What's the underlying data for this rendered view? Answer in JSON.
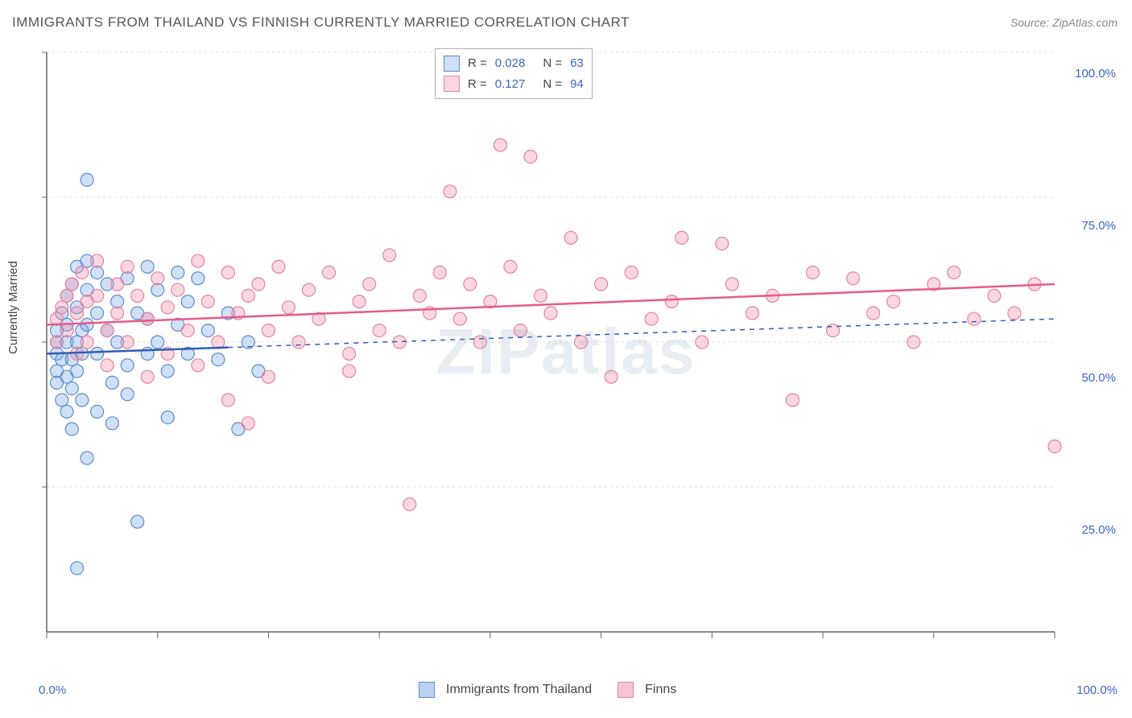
{
  "title": "IMMIGRANTS FROM THAILAND VS FINNISH CURRENTLY MARRIED CORRELATION CHART",
  "source": "Source: ZipAtlas.com",
  "watermark": "ZIPatlas",
  "y_axis_label": "Currently Married",
  "chart": {
    "type": "scatter",
    "xlim": [
      0,
      100
    ],
    "ylim": [
      0,
      100
    ],
    "y_ticks": [
      25,
      50,
      75,
      100
    ],
    "y_tick_labels": [
      "25.0%",
      "50.0%",
      "75.0%",
      "100.0%"
    ],
    "x_major_ticks": [
      0,
      100
    ],
    "x_tick_labels": [
      "0.0%",
      "100.0%"
    ],
    "x_minor_ticks": [
      11,
      22,
      33,
      44,
      55,
      66,
      77,
      88
    ],
    "background_color": "#ffffff",
    "grid_color": "#dddddd",
    "axis_color": "#666666",
    "marker_radius": 8,
    "marker_stroke_width": 1.2,
    "series": [
      {
        "name": "Immigrants from Thailand",
        "fill": "rgba(120,165,225,0.35)",
        "stroke": "#5a8bd0",
        "trend_stroke": "#2f5db8",
        "trend": {
          "x1": 0,
          "y1": 48,
          "x2": 100,
          "y2": 54,
          "solid_until_x": 18
        },
        "R": "0.028",
        "N": "63",
        "points": [
          [
            1,
            48
          ],
          [
            1,
            50
          ],
          [
            1,
            45
          ],
          [
            1,
            52
          ],
          [
            1,
            43
          ],
          [
            1.5,
            55
          ],
          [
            1.5,
            47
          ],
          [
            1.5,
            40
          ],
          [
            2,
            58
          ],
          [
            2,
            50
          ],
          [
            2,
            44
          ],
          [
            2,
            38
          ],
          [
            2,
            53
          ],
          [
            2.5,
            60
          ],
          [
            2.5,
            47
          ],
          [
            2.5,
            42
          ],
          [
            2.5,
            35
          ],
          [
            3,
            63
          ],
          [
            3,
            56
          ],
          [
            3,
            50
          ],
          [
            3,
            45
          ],
          [
            3,
            11
          ],
          [
            3.5,
            52
          ],
          [
            3.5,
            48
          ],
          [
            3.5,
            40
          ],
          [
            4,
            64
          ],
          [
            4,
            59
          ],
          [
            4,
            53
          ],
          [
            4,
            30
          ],
          [
            4,
            78
          ],
          [
            5,
            62
          ],
          [
            5,
            55
          ],
          [
            5,
            48
          ],
          [
            5,
            38
          ],
          [
            6,
            60
          ],
          [
            6,
            52
          ],
          [
            6.5,
            43
          ],
          [
            6.5,
            36
          ],
          [
            7,
            57
          ],
          [
            7,
            50
          ],
          [
            8,
            61
          ],
          [
            8,
            46
          ],
          [
            8,
            41
          ],
          [
            9,
            55
          ],
          [
            9,
            19
          ],
          [
            10,
            63
          ],
          [
            10,
            54
          ],
          [
            10,
            48
          ],
          [
            11,
            59
          ],
          [
            11,
            50
          ],
          [
            12,
            45
          ],
          [
            12,
            37
          ],
          [
            13,
            62
          ],
          [
            13,
            53
          ],
          [
            14,
            57
          ],
          [
            14,
            48
          ],
          [
            15,
            61
          ],
          [
            16,
            52
          ],
          [
            17,
            47
          ],
          [
            18,
            55
          ],
          [
            19,
            35
          ],
          [
            20,
            50
          ],
          [
            21,
            45
          ]
        ]
      },
      {
        "name": "Finns",
        "fill": "rgba(240,140,165,0.35)",
        "stroke": "#e682a0",
        "trend_stroke": "#e65a8a",
        "trend": {
          "x1": 0,
          "y1": 53,
          "x2": 100,
          "y2": 60,
          "solid_until_x": 100
        },
        "R": "0.127",
        "N": "94",
        "points": [
          [
            1,
            54
          ],
          [
            1,
            50
          ],
          [
            1.5,
            56
          ],
          [
            2,
            58
          ],
          [
            2,
            52
          ],
          [
            2.5,
            60
          ],
          [
            3,
            55
          ],
          [
            3,
            48
          ],
          [
            3.5,
            62
          ],
          [
            4,
            57
          ],
          [
            4,
            50
          ],
          [
            5,
            64
          ],
          [
            5,
            58
          ],
          [
            6,
            52
          ],
          [
            6,
            46
          ],
          [
            7,
            60
          ],
          [
            7,
            55
          ],
          [
            8,
            63
          ],
          [
            8,
            50
          ],
          [
            9,
            58
          ],
          [
            10,
            54
          ],
          [
            10,
            44
          ],
          [
            11,
            61
          ],
          [
            12,
            56
          ],
          [
            12,
            48
          ],
          [
            13,
            59
          ],
          [
            14,
            52
          ],
          [
            15,
            64
          ],
          [
            15,
            46
          ],
          [
            16,
            57
          ],
          [
            17,
            50
          ],
          [
            18,
            62
          ],
          [
            18,
            40
          ],
          [
            19,
            55
          ],
          [
            20,
            58
          ],
          [
            20,
            36
          ],
          [
            21,
            60
          ],
          [
            22,
            52
          ],
          [
            22,
            44
          ],
          [
            23,
            63
          ],
          [
            24,
            56
          ],
          [
            25,
            50
          ],
          [
            26,
            59
          ],
          [
            27,
            54
          ],
          [
            28,
            62
          ],
          [
            30,
            48
          ],
          [
            30,
            45
          ],
          [
            31,
            57
          ],
          [
            32,
            60
          ],
          [
            33,
            52
          ],
          [
            34,
            65
          ],
          [
            35,
            50
          ],
          [
            36,
            22
          ],
          [
            37,
            58
          ],
          [
            38,
            55
          ],
          [
            39,
            62
          ],
          [
            40,
            76
          ],
          [
            41,
            54
          ],
          [
            42,
            60
          ],
          [
            43,
            50
          ],
          [
            44,
            57
          ],
          [
            45,
            84
          ],
          [
            46,
            63
          ],
          [
            47,
            52
          ],
          [
            48,
            82
          ],
          [
            49,
            58
          ],
          [
            50,
            55
          ],
          [
            52,
            68
          ],
          [
            53,
            50
          ],
          [
            55,
            60
          ],
          [
            56,
            44
          ],
          [
            58,
            62
          ],
          [
            60,
            54
          ],
          [
            62,
            57
          ],
          [
            63,
            68
          ],
          [
            65,
            50
          ],
          [
            67,
            67
          ],
          [
            68,
            60
          ],
          [
            70,
            55
          ],
          [
            72,
            58
          ],
          [
            74,
            40
          ],
          [
            76,
            62
          ],
          [
            78,
            52
          ],
          [
            80,
            61
          ],
          [
            82,
            55
          ],
          [
            84,
            57
          ],
          [
            86,
            50
          ],
          [
            88,
            60
          ],
          [
            90,
            62
          ],
          [
            92,
            54
          ],
          [
            94,
            58
          ],
          [
            96,
            55
          ],
          [
            98,
            60
          ],
          [
            100,
            32
          ]
        ]
      }
    ]
  },
  "legend_bottom": {
    "items": [
      {
        "label": "Immigrants from Thailand",
        "fill": "rgba(120,165,225,0.5)",
        "stroke": "#5a8bd0"
      },
      {
        "label": "Finns",
        "fill": "rgba(240,140,165,0.5)",
        "stroke": "#e682a0"
      }
    ]
  }
}
